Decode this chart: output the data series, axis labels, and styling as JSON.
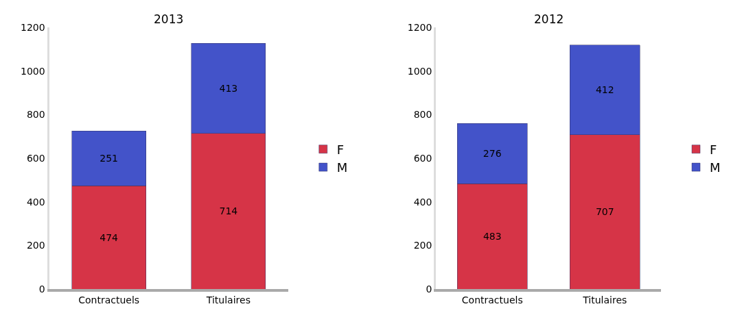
{
  "chart_data": [
    {
      "type": "bar",
      "title": "2013",
      "stacked": true,
      "data_labels": true,
      "legend": "right",
      "grid": false,
      "categories": [
        "Contractuels",
        "Titulaires"
      ],
      "ylim": [
        0,
        1200
      ],
      "yticks": [
        0,
        200,
        400,
        600,
        800,
        1000,
        1200
      ],
      "series": [
        {
          "name": "F",
          "color": "#d63447",
          "values": [
            474,
            714
          ]
        },
        {
          "name": "M",
          "color": "#4353c9",
          "values": [
            251,
            413
          ]
        }
      ]
    },
    {
      "type": "bar",
      "title": "2012",
      "stacked": true,
      "data_labels": true,
      "legend": "right",
      "grid": false,
      "categories": [
        "Contractuels",
        "Titulaires"
      ],
      "ylim": [
        0,
        1200
      ],
      "yticks": [
        0,
        200,
        400,
        600,
        800,
        1000,
        1200
      ],
      "series": [
        {
          "name": "F",
          "color": "#d63447",
          "values": [
            483,
            707
          ]
        },
        {
          "name": "M",
          "color": "#4353c9",
          "values": [
            276,
            412
          ]
        }
      ]
    }
  ]
}
